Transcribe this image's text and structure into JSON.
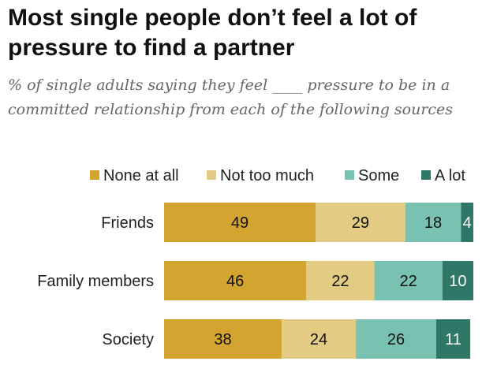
{
  "title": "Most single people don’t feel a lot of pressure to find a partner",
  "subtitle": "% of single adults saying they feel ____ pressure to be in a committed relationship from each of the following sources",
  "colors": {
    "none_at_all": "#d3a42f",
    "not_too_much": "#e3cb84",
    "some": "#79c1b1",
    "a_lot": "#2f7767"
  },
  "chart_data": {
    "type": "bar",
    "orientation": "horizontal",
    "stacked": true,
    "categories": [
      "Friends",
      "Family members",
      "Society"
    ],
    "series": [
      {
        "name": "None at all",
        "values": [
          49,
          46,
          38
        ]
      },
      {
        "name": "Not too much",
        "values": [
          29,
          22,
          24
        ]
      },
      {
        "name": "Some",
        "values": [
          18,
          22,
          26
        ]
      },
      {
        "name": "A lot",
        "values": [
          4,
          10,
          11
        ]
      }
    ],
    "xlim": [
      0,
      100
    ],
    "grid": false,
    "legend": "top"
  }
}
